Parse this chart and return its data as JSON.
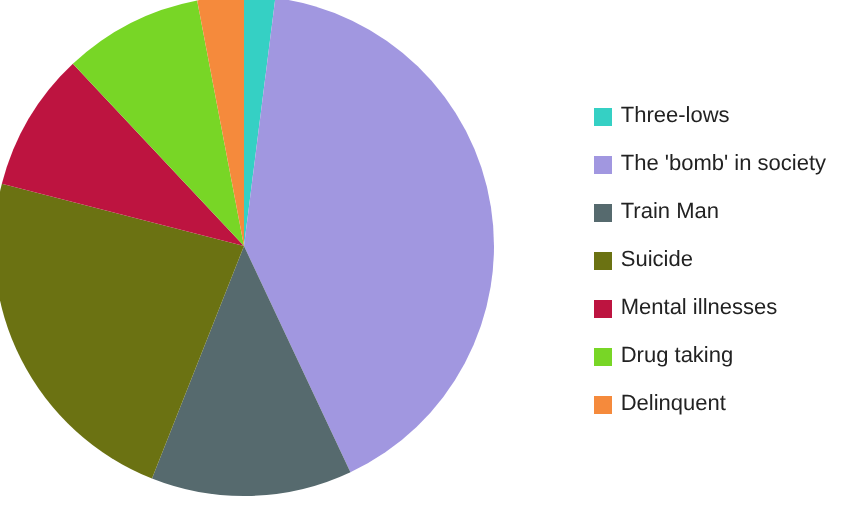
{
  "chart_data": {
    "type": "pie",
    "categories": [
      "Three-lows",
      "The 'bomb' in society",
      "Train Man",
      "Suicide",
      "Mental illnesses",
      "Drug taking",
      "Delinquent"
    ],
    "values": [
      2,
      41,
      13,
      23,
      9,
      9,
      3
    ],
    "colors": [
      "#35d0c4",
      "#a197e0",
      "#566a6e",
      "#6b7212",
      "#bd1440",
      "#78d626",
      "#f58a3c"
    ],
    "legend": "right"
  }
}
